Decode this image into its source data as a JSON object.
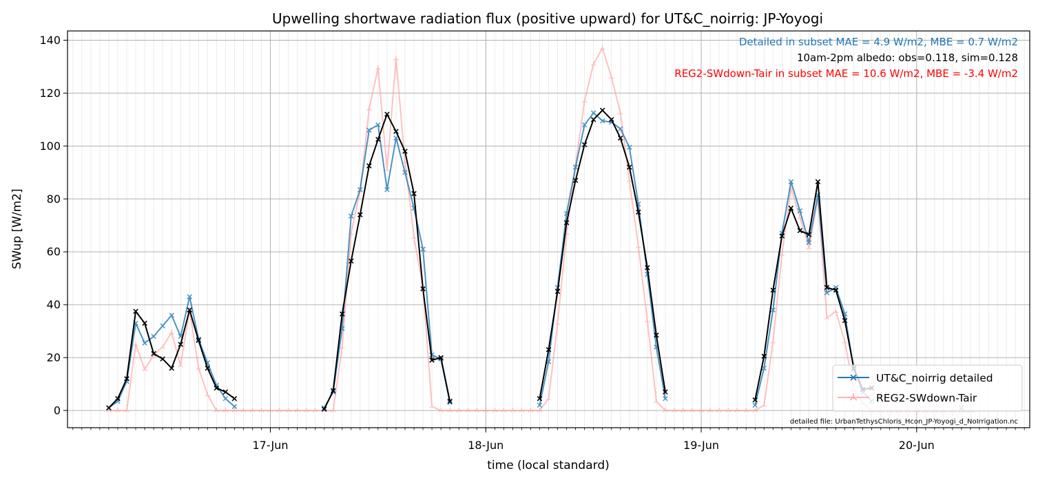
{
  "chart_data": {
    "type": "line",
    "title": "Upwelling shortwave radiation flux (positive upward) for UT&C_noirrig: JP-Yoyogi",
    "xlabel": "time (local standard)",
    "ylabel": "SWup [W/m2]",
    "ylim": [
      -6.5,
      143.5
    ],
    "xlim": [
      "2024-06-16T01:24",
      "2024-06-20T12:36"
    ],
    "x_step_hours": 1,
    "x_start": "2024-06-16T06:00",
    "yticks": [
      0,
      20,
      40,
      60,
      80,
      100,
      120,
      140
    ],
    "xticks": [
      {
        "date": "2024-06-17T00:00",
        "label": "17-Jun"
      },
      {
        "date": "2024-06-18T00:00",
        "label": "18-Jun"
      },
      {
        "date": "2024-06-19T00:00",
        "label": "19-Jun"
      },
      {
        "date": "2024-06-20T00:00",
        "label": "20-Jun"
      }
    ],
    "grid": true,
    "legend_position": "lower-right",
    "annotations": [
      {
        "text": "Detailed in subset MAE = 4.9 W/m2, MBE = 0.7 W/m2",
        "color": "#1f77b4"
      },
      {
        "text": "10am-2pm albedo: obs=0.118, sim=0.128",
        "color": "#000000"
      },
      {
        "text": "REG2-SWdown-Tair in subset MAE = 10.6 W/m2, MBE = -3.4 W/m2",
        "color": "#ff0000"
      }
    ],
    "footnote": "detailed file: UrbanTethysChloris_Hcon_JP-Yoyogi_d_NoIrrigation.nc",
    "series": [
      {
        "name": "UT&C_noirrig detailed",
        "color": "#1f77b4",
        "marker": "x",
        "values": [
          1,
          3.5,
          11,
          33,
          25.5,
          28,
          32,
          36,
          28,
          43,
          27,
          18,
          9.5,
          4.5,
          1.5,
          null,
          null,
          null,
          null,
          null,
          null,
          null,
          null,
          null,
          1,
          7,
          31,
          73.5,
          83.5,
          106,
          108,
          83.5,
          103,
          90,
          76.5,
          61,
          21,
          19.5,
          3,
          null,
          null,
          null,
          null,
          null,
          null,
          null,
          null,
          null,
          2,
          18.5,
          46.5,
          74.5,
          92,
          108,
          112.5,
          109.5,
          109,
          106.5,
          99.5,
          78,
          51.5,
          24,
          4.5,
          null,
          null,
          null,
          null,
          null,
          null,
          null,
          null,
          null,
          2,
          16,
          38,
          67,
          86.5,
          75.5,
          63.5,
          81.5,
          44.5,
          46.5,
          36.5,
          15.5,
          7,
          3.5,
          null,
          null,
          null,
          null,
          null,
          null,
          null,
          null,
          null,
          1
        ]
      },
      {
        "name": "REG2-SWdown-Tair",
        "color": "#ff9999",
        "marker": "tri",
        "values": [
          0,
          0,
          0,
          25,
          15.5,
          21,
          24,
          29.5,
          17,
          38,
          16,
          6,
          0,
          0,
          0,
          0,
          0,
          0,
          0,
          0,
          0,
          0,
          0,
          0,
          0,
          0,
          24,
          67,
          83,
          114,
          129.5,
          91,
          133,
          94,
          65.5,
          46.5,
          1.5,
          0,
          0,
          0,
          0,
          0,
          0,
          0,
          0,
          0,
          0,
          0,
          0,
          4.5,
          33,
          67,
          93,
          117,
          131,
          137,
          126,
          112.5,
          87,
          62,
          34,
          3.5,
          0,
          0,
          0,
          0,
          0,
          0,
          0,
          0,
          0,
          0,
          0,
          2,
          26,
          59,
          84,
          73,
          61.5,
          80,
          35,
          37.5,
          26,
          8,
          3,
          0,
          0,
          0,
          0,
          0,
          0,
          0,
          0,
          0,
          0,
          0,
          0
        ]
      },
      {
        "name": "",
        "color": "#000000",
        "marker": "x",
        "values": [
          1,
          4.5,
          12,
          37.5,
          33,
          21.5,
          19.5,
          16,
          25,
          38,
          26.5,
          16,
          8.5,
          7,
          4.5,
          null,
          null,
          null,
          null,
          null,
          null,
          null,
          null,
          null,
          0.5,
          7.5,
          36.5,
          56.5,
          74,
          92.5,
          102.5,
          112,
          105.5,
          98,
          82,
          46,
          19,
          20,
          3.5,
          null,
          null,
          null,
          null,
          null,
          null,
          null,
          null,
          null,
          4.5,
          23,
          45,
          71,
          87,
          100.5,
          110,
          113.5,
          110,
          103,
          92,
          75,
          54,
          28.5,
          7,
          null,
          null,
          null,
          null,
          null,
          null,
          null,
          null,
          null,
          4,
          20.5,
          45.5,
          66,
          76.5,
          68,
          66.5,
          86.5,
          46.5,
          45.5,
          34,
          16,
          8,
          8.5
        ]
      }
    ]
  }
}
